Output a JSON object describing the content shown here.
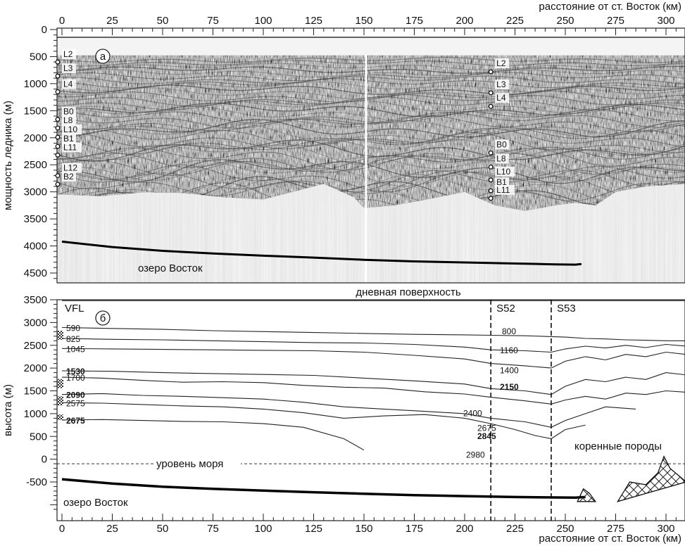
{
  "chart_data": [
    {
      "panel": "а",
      "type": "radargram",
      "top_xlabel": "расстояние от ст. Восток (км)",
      "ylabel": "мощность ледника (м)",
      "xlim": [
        0,
        310
      ],
      "ylim": [
        4600,
        0
      ],
      "xticks": [
        "0",
        "25",
        "50",
        "75",
        "100",
        "125",
        "150",
        "175",
        "200",
        "225",
        "250",
        "275",
        "300"
      ],
      "yticks": [
        "0",
        "500",
        "1000",
        "1500",
        "2000",
        "2500",
        "3000",
        "3500",
        "4000",
        "4500"
      ],
      "lake_label": "озеро Восток",
      "lake_surface": {
        "x": [
          0,
          25,
          50,
          75,
          100,
          125,
          150,
          175,
          200,
          225,
          245,
          255,
          258
        ],
        "y": [
          3920,
          4020,
          4090,
          4140,
          4180,
          4215,
          4255,
          4285,
          4305,
          4325,
          4340,
          4345,
          4335
        ]
      },
      "ice_base": {
        "x": [
          0,
          20,
          40,
          60,
          80,
          100,
          120,
          130,
          145,
          150,
          165,
          180,
          200,
          215,
          230,
          245,
          255,
          265,
          275,
          290,
          310
        ],
        "y": [
          3050,
          3080,
          3010,
          3020,
          3100,
          3140,
          2950,
          2850,
          3100,
          3300,
          3250,
          3150,
          3000,
          3250,
          3350,
          3250,
          3200,
          3250,
          3000,
          2900,
          2850
        ]
      },
      "markers_left": {
        "x": 0,
        "labels": [
          "L2",
          "L3",
          "L4",
          "B0",
          "L8",
          "L10",
          "B1",
          "L11",
          "L12",
          "B2"
        ],
        "depths": [
          600,
          860,
          1150,
          1660,
          1820,
          1990,
          2160,
          2320,
          2700,
          2860
        ]
      },
      "markers_right": {
        "x": 213,
        "labels": [
          "L2",
          "L3",
          "L4",
          "B0",
          "L8",
          "L10",
          "B1",
          "L11"
        ],
        "depths": [
          780,
          1170,
          1420,
          2280,
          2540,
          2780,
          2980,
          3120
        ]
      }
    },
    {
      "panel": "б",
      "type": "line",
      "bottom_xlabel": "расстояние от ст. Восток (км)",
      "ylabel": "высота (м)",
      "xlim": [
        0,
        310
      ],
      "ylim": [
        -1100,
        3500
      ],
      "xticks": [
        "0",
        "25",
        "50",
        "75",
        "100",
        "125",
        "150",
        "175",
        "200",
        "225",
        "250",
        "275",
        "300"
      ],
      "yticks": [
        "-500",
        "0",
        "500",
        "1000",
        "1500",
        "2000",
        "2500",
        "3000",
        "3500"
      ],
      "surface_label": "дневная поверхность",
      "surface_elevation": 3480,
      "sea_level_label": "уровень моря",
      "bedrock_label": "коренные породы",
      "lake_label": "озеро Восток",
      "column_label": "VFL",
      "sections": [
        {
          "label": "S52",
          "x": 213
        },
        {
          "label": "S53",
          "x": 243
        }
      ],
      "lake_surface": {
        "x": [
          0,
          25,
          50,
          75,
          100,
          125,
          150,
          175,
          200,
          225,
          245,
          255,
          260
        ],
        "y": [
          -440,
          -535,
          -605,
          -650,
          -690,
          -725,
          -760,
          -790,
          -810,
          -830,
          -840,
          -845,
          -830
        ]
      },
      "bedrock_outcrops": [
        {
          "x": [
            256,
            259,
            262,
            265
          ],
          "y": [
            -930,
            -650,
            -750,
            -930
          ]
        },
        {
          "x": [
            276,
            282,
            290,
            296,
            299,
            302,
            306,
            310
          ],
          "y": [
            -930,
            -500,
            -560,
            -300,
            60,
            -200,
            -350,
            -500
          ]
        }
      ],
      "left_labels": [
        {
          "text": "590",
          "bold": false
        },
        {
          "text": "825",
          "bold": false
        },
        {
          "text": "1045",
          "bold": false
        },
        {
          "text": "1530",
          "bold": true
        },
        {
          "text": "1700",
          "bold": false
        },
        {
          "text": "2090",
          "bold": true
        },
        {
          "text": "2575",
          "bold": false
        },
        {
          "text": "2675",
          "bold": true
        }
      ],
      "right_labels": [
        {
          "text": "800",
          "bold": false
        },
        {
          "text": "1160",
          "bold": false
        },
        {
          "text": "1400",
          "bold": false
        },
        {
          "text": "2150",
          "bold": true
        },
        {
          "text": "2400",
          "bold": false
        },
        {
          "text": "2675",
          "bold": false
        },
        {
          "text": "2845",
          "bold": true
        },
        {
          "text": "2980",
          "bold": false
        }
      ],
      "series": [
        {
          "values_x": [
            0,
            25,
            50,
            75,
            100,
            125,
            150,
            175,
            200,
            213,
            230,
            243,
            250,
            260,
            270,
            280,
            290,
            300,
            310
          ],
          "values_y": [
            2890,
            2870,
            2850,
            2820,
            2800,
            2780,
            2760,
            2740,
            2730,
            2720,
            2710,
            2690,
            2680,
            2650,
            2640,
            2620,
            2610,
            2600,
            2600
          ]
        },
        {
          "values_x": [
            0,
            25,
            50,
            75,
            100,
            125,
            150,
            175,
            200,
            213,
            230,
            243,
            250,
            260,
            270,
            280,
            290,
            300,
            310
          ],
          "values_y": [
            2650,
            2630,
            2620,
            2600,
            2580,
            2560,
            2550,
            2520,
            2460,
            2400,
            2380,
            2350,
            2420,
            2480,
            2440,
            2500,
            2450,
            2520,
            2480
          ]
        },
        {
          "values_x": [
            0,
            25,
            50,
            75,
            100,
            125,
            150,
            175,
            200,
            213,
            230,
            243,
            250,
            260,
            270,
            280,
            290,
            300,
            310
          ],
          "values_y": [
            2430,
            2420,
            2410,
            2400,
            2390,
            2380,
            2350,
            2280,
            2200,
            2100,
            2050,
            2000,
            2150,
            2250,
            2180,
            2300,
            2250,
            2350,
            2300
          ]
        },
        {
          "values_x": [
            0,
            25,
            50,
            75,
            100,
            125,
            150,
            175,
            200,
            213,
            230,
            243,
            250,
            260,
            270,
            280,
            290,
            300,
            310
          ],
          "values_y": [
            1940,
            1930,
            1900,
            1880,
            1860,
            1840,
            1780,
            1720,
            1650,
            1550,
            1500,
            1420,
            1600,
            1750,
            1700,
            1800,
            1750,
            1900,
            1850
          ]
        },
        {
          "values_x": [
            0,
            20,
            40,
            60,
            80,
            100,
            120,
            140,
            160,
            180,
            200,
            213,
            230,
            243,
            250,
            260,
            270,
            280,
            290,
            300,
            310
          ],
          "values_y": [
            1800,
            1780,
            1730,
            1690,
            1700,
            1680,
            1620,
            1580,
            1560,
            1480,
            1430,
            1360,
            1280,
            1210,
            1300,
            1380,
            1320,
            1450,
            1420,
            1500,
            1470
          ]
        },
        {
          "values_x": [
            0,
            20,
            40,
            60,
            80,
            100,
            120,
            140,
            160,
            180,
            200,
            213,
            230,
            243,
            250,
            260,
            270,
            285
          ],
          "values_y": [
            1420,
            1440,
            1400,
            1380,
            1350,
            1320,
            1250,
            1150,
            1100,
            1050,
            1000,
            900,
            820,
            700,
            850,
            1000,
            1150,
            1100
          ]
        },
        {
          "values_x": [
            0,
            20,
            40,
            60,
            80,
            100,
            120,
            140,
            160,
            180,
            200,
            213,
            225,
            235,
            243,
            250,
            260
          ],
          "values_y": [
            1240,
            1230,
            1200,
            1170,
            1150,
            1100,
            1020,
            900,
            950,
            980,
            900,
            780,
            650,
            520,
            450,
            650,
            750
          ]
        },
        {
          "values_x": [
            0,
            20,
            40,
            60,
            80,
            100,
            120,
            140,
            150
          ],
          "values_y": [
            860,
            870,
            850,
            830,
            820,
            780,
            700,
            450,
            200
          ]
        }
      ]
    }
  ]
}
